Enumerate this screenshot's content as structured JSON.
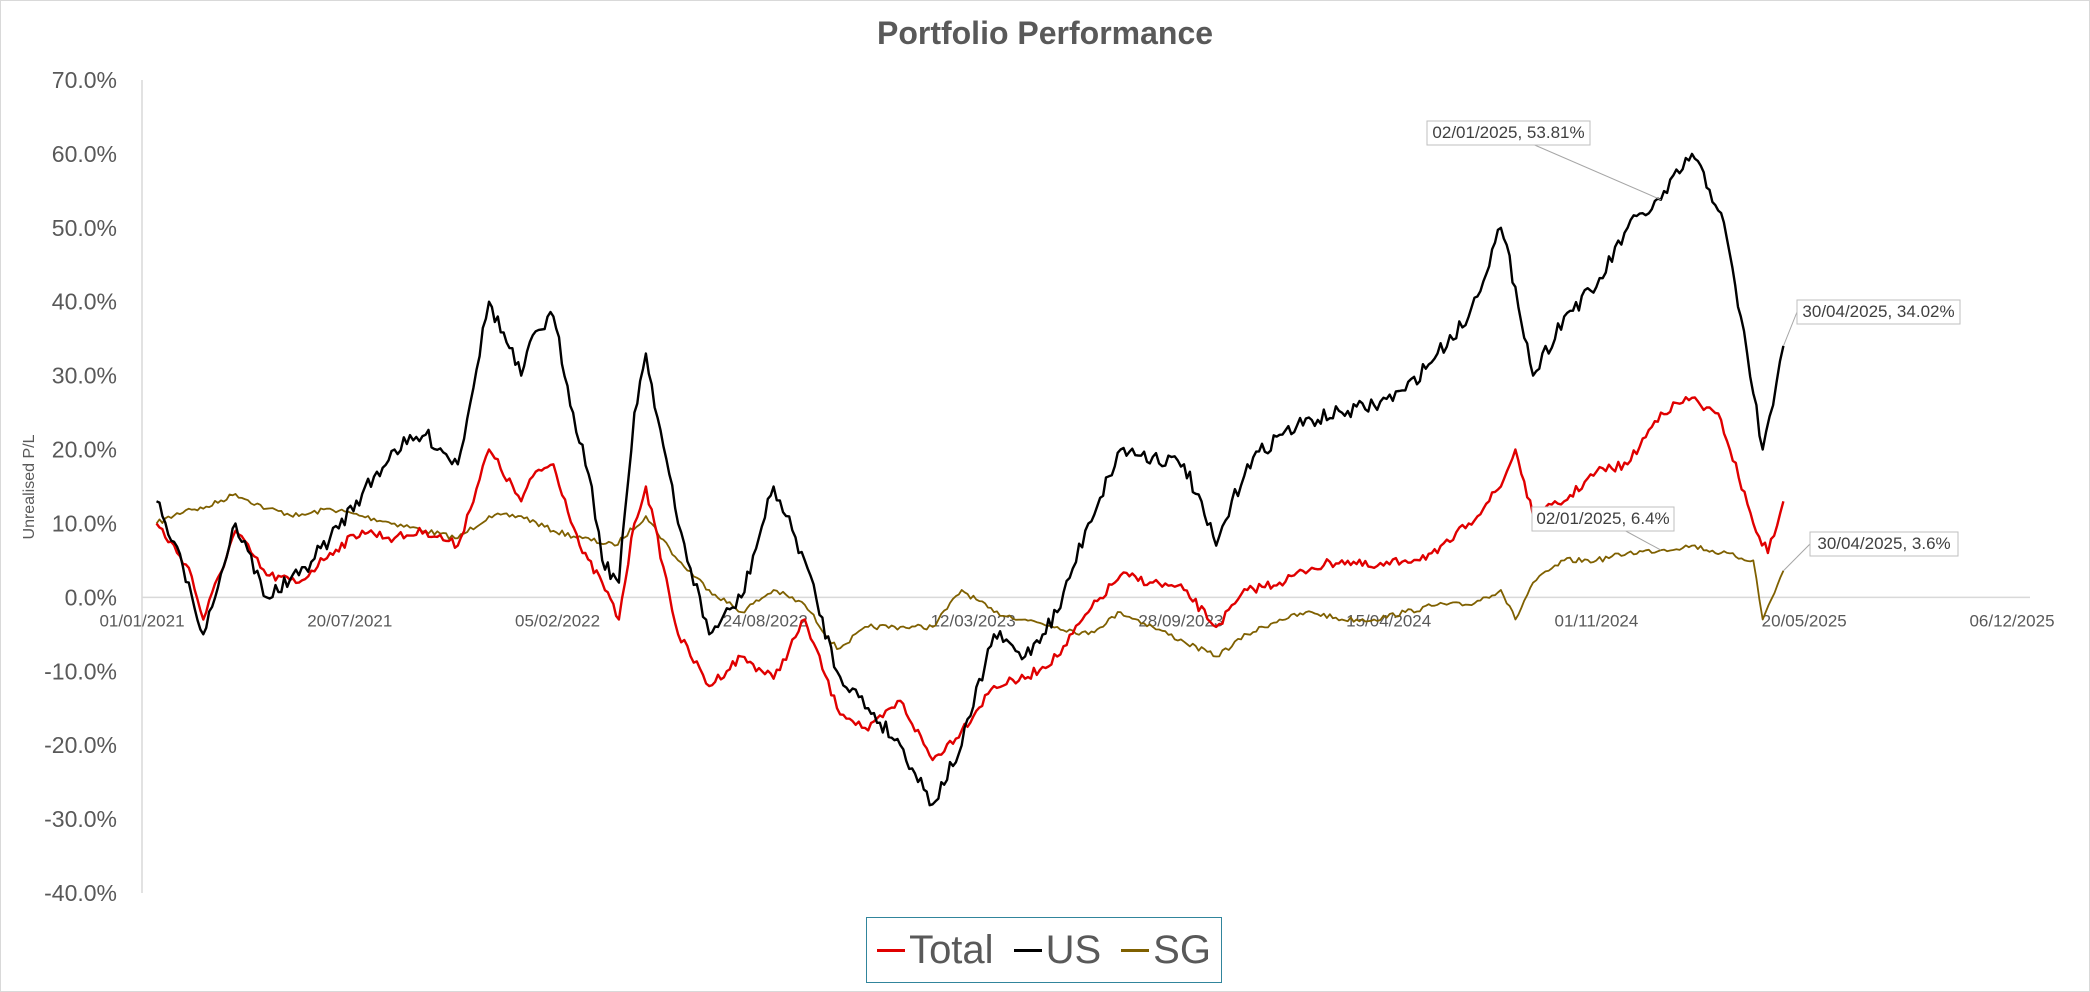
{
  "chart_data": {
    "type": "line",
    "title": "Portfolio Performance",
    "ylabel": "Unrealised P/L",
    "xlabel": "",
    "x_range": [
      "01/01/2021",
      "06/12/2025"
    ],
    "x_ticks": [
      "01/01/2021",
      "20/07/2021",
      "05/02/2022",
      "24/08/2022",
      "12/03/2023",
      "28/09/2023",
      "15/04/2024",
      "01/11/2024",
      "20/05/2025",
      "06/12/2025"
    ],
    "y_ticks": [
      "70.0%",
      "60.0%",
      "50.0%",
      "40.0%",
      "30.0%",
      "20.0%",
      "10.0%",
      "0.0%",
      "-10.0%",
      "-20.0%",
      "-30.0%",
      "-40.0%"
    ],
    "ylim": [
      -40,
      70
    ],
    "grid": false,
    "legend_position": "bottom",
    "series": [
      {
        "name": "Total",
        "color": "#e00000",
        "points": [
          [
            "15/01/2021",
            10
          ],
          [
            "15/02/2021",
            4
          ],
          [
            "01/03/2021",
            -3
          ],
          [
            "01/04/2021",
            9
          ],
          [
            "01/05/2021",
            3
          ],
          [
            "01/06/2021",
            2
          ],
          [
            "01/07/2021",
            6
          ],
          [
            "01/08/2021",
            9
          ],
          [
            "01/09/2021",
            8
          ],
          [
            "01/10/2021",
            9
          ],
          [
            "01/11/2021",
            7
          ],
          [
            "01/12/2021",
            20
          ],
          [
            "01/01/2022",
            13
          ],
          [
            "15/01/2022",
            17
          ],
          [
            "01/02/2022",
            18
          ],
          [
            "01/03/2022",
            6
          ],
          [
            "20/03/2022",
            2
          ],
          [
            "05/04/2022",
            -3
          ],
          [
            "20/04/2022",
            10
          ],
          [
            "01/05/2022",
            15
          ],
          [
            "01/06/2022",
            -5
          ],
          [
            "01/07/2022",
            -12
          ],
          [
            "01/08/2022",
            -8
          ],
          [
            "01/09/2022",
            -11
          ],
          [
            "01/10/2022",
            -3
          ],
          [
            "01/11/2022",
            -15
          ],
          [
            "01/12/2022",
            -18
          ],
          [
            "01/01/2023",
            -14
          ],
          [
            "01/02/2023",
            -22
          ],
          [
            "01/03/2023",
            -18
          ],
          [
            "01/04/2023",
            -12
          ],
          [
            "01/05/2023",
            -11
          ],
          [
            "01/06/2023",
            -8
          ],
          [
            "01/07/2023",
            -2
          ],
          [
            "01/08/2023",
            3
          ],
          [
            "01/09/2023",
            2
          ],
          [
            "01/10/2023",
            1
          ],
          [
            "01/11/2023",
            -4
          ],
          [
            "01/12/2023",
            1
          ],
          [
            "01/01/2024",
            2
          ],
          [
            "01/02/2024",
            4
          ],
          [
            "01/03/2024",
            5
          ],
          [
            "01/04/2024",
            4
          ],
          [
            "01/05/2024",
            5
          ],
          [
            "01/06/2024",
            6
          ],
          [
            "01/07/2024",
            10
          ],
          [
            "01/08/2024",
            15
          ],
          [
            "15/08/2024",
            20
          ],
          [
            "01/09/2024",
            11
          ],
          [
            "01/10/2024",
            13
          ],
          [
            "01/11/2024",
            17
          ],
          [
            "01/12/2024",
            18
          ],
          [
            "02/01/2025",
            25
          ],
          [
            "01/02/2025",
            27
          ],
          [
            "01/03/2025",
            24
          ],
          [
            "01/04/2025",
            10
          ],
          [
            "15/04/2025",
            6
          ],
          [
            "30/04/2025",
            13
          ]
        ]
      },
      {
        "name": "US",
        "color": "#000000",
        "points": [
          [
            "15/01/2021",
            13
          ],
          [
            "15/02/2021",
            2
          ],
          [
            "01/03/2021",
            -5
          ],
          [
            "01/04/2021",
            10
          ],
          [
            "01/05/2021",
            0
          ],
          [
            "01/06/2021",
            3
          ],
          [
            "01/07/2021",
            8
          ],
          [
            "01/08/2021",
            14
          ],
          [
            "01/09/2021",
            20
          ],
          [
            "01/10/2021",
            22
          ],
          [
            "01/11/2021",
            18
          ],
          [
            "01/12/2021",
            40
          ],
          [
            "01/01/2022",
            30
          ],
          [
            "15/01/2022",
            36
          ],
          [
            "01/02/2022",
            38
          ],
          [
            "20/02/2022",
            25
          ],
          [
            "10/03/2022",
            15
          ],
          [
            "20/03/2022",
            5
          ],
          [
            "05/04/2022",
            2
          ],
          [
            "20/04/2022",
            25
          ],
          [
            "01/05/2022",
            33
          ],
          [
            "01/06/2022",
            10
          ],
          [
            "01/07/2022",
            -5
          ],
          [
            "01/08/2022",
            0
          ],
          [
            "01/09/2022",
            15
          ],
          [
            "01/10/2022",
            5
          ],
          [
            "01/11/2022",
            -10
          ],
          [
            "01/12/2022",
            -15
          ],
          [
            "01/01/2023",
            -20
          ],
          [
            "01/02/2023",
            -28
          ],
          [
            "01/03/2023",
            -20
          ],
          [
            "01/04/2023",
            -5
          ],
          [
            "01/05/2023",
            -8
          ],
          [
            "01/06/2023",
            -2
          ],
          [
            "01/07/2023",
            10
          ],
          [
            "01/08/2023",
            20
          ],
          [
            "01/09/2023",
            19
          ],
          [
            "01/10/2023",
            18
          ],
          [
            "01/11/2023",
            7
          ],
          [
            "01/12/2023",
            18
          ],
          [
            "01/01/2024",
            22
          ],
          [
            "01/02/2024",
            24
          ],
          [
            "01/03/2024",
            25
          ],
          [
            "01/04/2024",
            26
          ],
          [
            "01/05/2024",
            28
          ],
          [
            "01/06/2024",
            33
          ],
          [
            "01/07/2024",
            38
          ],
          [
            "01/08/2024",
            50
          ],
          [
            "15/08/2024",
            42
          ],
          [
            "01/09/2024",
            30
          ],
          [
            "01/10/2024",
            38
          ],
          [
            "01/11/2024",
            42
          ],
          [
            "01/12/2024",
            50
          ],
          [
            "02/01/2025",
            53.81
          ],
          [
            "01/02/2025",
            60
          ],
          [
            "01/03/2025",
            52
          ],
          [
            "20/03/2025",
            38
          ],
          [
            "10/04/2025",
            20
          ],
          [
            "20/04/2025",
            26
          ],
          [
            "30/04/2025",
            34.02
          ]
        ]
      },
      {
        "name": "SG",
        "color": "#7f6000",
        "points": [
          [
            "15/01/2021",
            10
          ],
          [
            "15/02/2021",
            12
          ],
          [
            "01/03/2021",
            12
          ],
          [
            "01/04/2021",
            14
          ],
          [
            "01/05/2021",
            12
          ],
          [
            "01/06/2021",
            11
          ],
          [
            "01/07/2021",
            12
          ],
          [
            "01/08/2021",
            11
          ],
          [
            "01/09/2021",
            10
          ],
          [
            "01/10/2021",
            9
          ],
          [
            "01/11/2021",
            8
          ],
          [
            "01/12/2021",
            11
          ],
          [
            "01/01/2022",
            11
          ],
          [
            "01/02/2022",
            9
          ],
          [
            "01/03/2022",
            8
          ],
          [
            "01/04/2022",
            7
          ],
          [
            "01/05/2022",
            11
          ],
          [
            "01/06/2022",
            5
          ],
          [
            "01/07/2022",
            1
          ],
          [
            "01/08/2022",
            -2
          ],
          [
            "01/09/2022",
            1
          ],
          [
            "01/10/2022",
            -1
          ],
          [
            "01/11/2022",
            -7
          ],
          [
            "01/12/2022",
            -4
          ],
          [
            "01/01/2023",
            -4
          ],
          [
            "01/02/2023",
            -4
          ],
          [
            "01/03/2023",
            1
          ],
          [
            "01/04/2023",
            -2
          ],
          [
            "01/05/2023",
            -3
          ],
          [
            "01/06/2023",
            -4
          ],
          [
            "01/07/2023",
            -5
          ],
          [
            "01/08/2023",
            -2
          ],
          [
            "01/09/2023",
            -4
          ],
          [
            "01/10/2023",
            -6
          ],
          [
            "01/11/2023",
            -8
          ],
          [
            "01/12/2023",
            -5
          ],
          [
            "01/01/2024",
            -3
          ],
          [
            "01/02/2024",
            -2
          ],
          [
            "01/03/2024",
            -3
          ],
          [
            "01/04/2024",
            -3
          ],
          [
            "01/05/2024",
            -2
          ],
          [
            "01/06/2024",
            -1
          ],
          [
            "01/07/2024",
            -1
          ],
          [
            "01/08/2024",
            1
          ],
          [
            "15/08/2024",
            -3
          ],
          [
            "01/09/2024",
            2
          ],
          [
            "01/10/2024",
            5
          ],
          [
            "01/11/2024",
            5
          ],
          [
            "01/12/2024",
            6
          ],
          [
            "02/01/2025",
            6.4
          ],
          [
            "01/02/2025",
            7
          ],
          [
            "01/03/2025",
            6
          ],
          [
            "01/04/2025",
            5
          ],
          [
            "10/04/2025",
            -3
          ],
          [
            "30/04/2025",
            3.6
          ]
        ]
      }
    ],
    "annotations": [
      {
        "series": "US",
        "x": "02/01/2025",
        "y": 53.81,
        "label": "02/01/2025, 53.81%"
      },
      {
        "series": "US",
        "x": "30/04/2025",
        "y": 34.02,
        "label": "30/04/2025, 34.02%"
      },
      {
        "series": "SG",
        "x": "02/01/2025",
        "y": 6.4,
        "label": "02/01/2025, 6.4%"
      },
      {
        "series": "SG",
        "x": "30/04/2025",
        "y": 3.6,
        "label": "30/04/2025, 3.6%"
      }
    ]
  }
}
